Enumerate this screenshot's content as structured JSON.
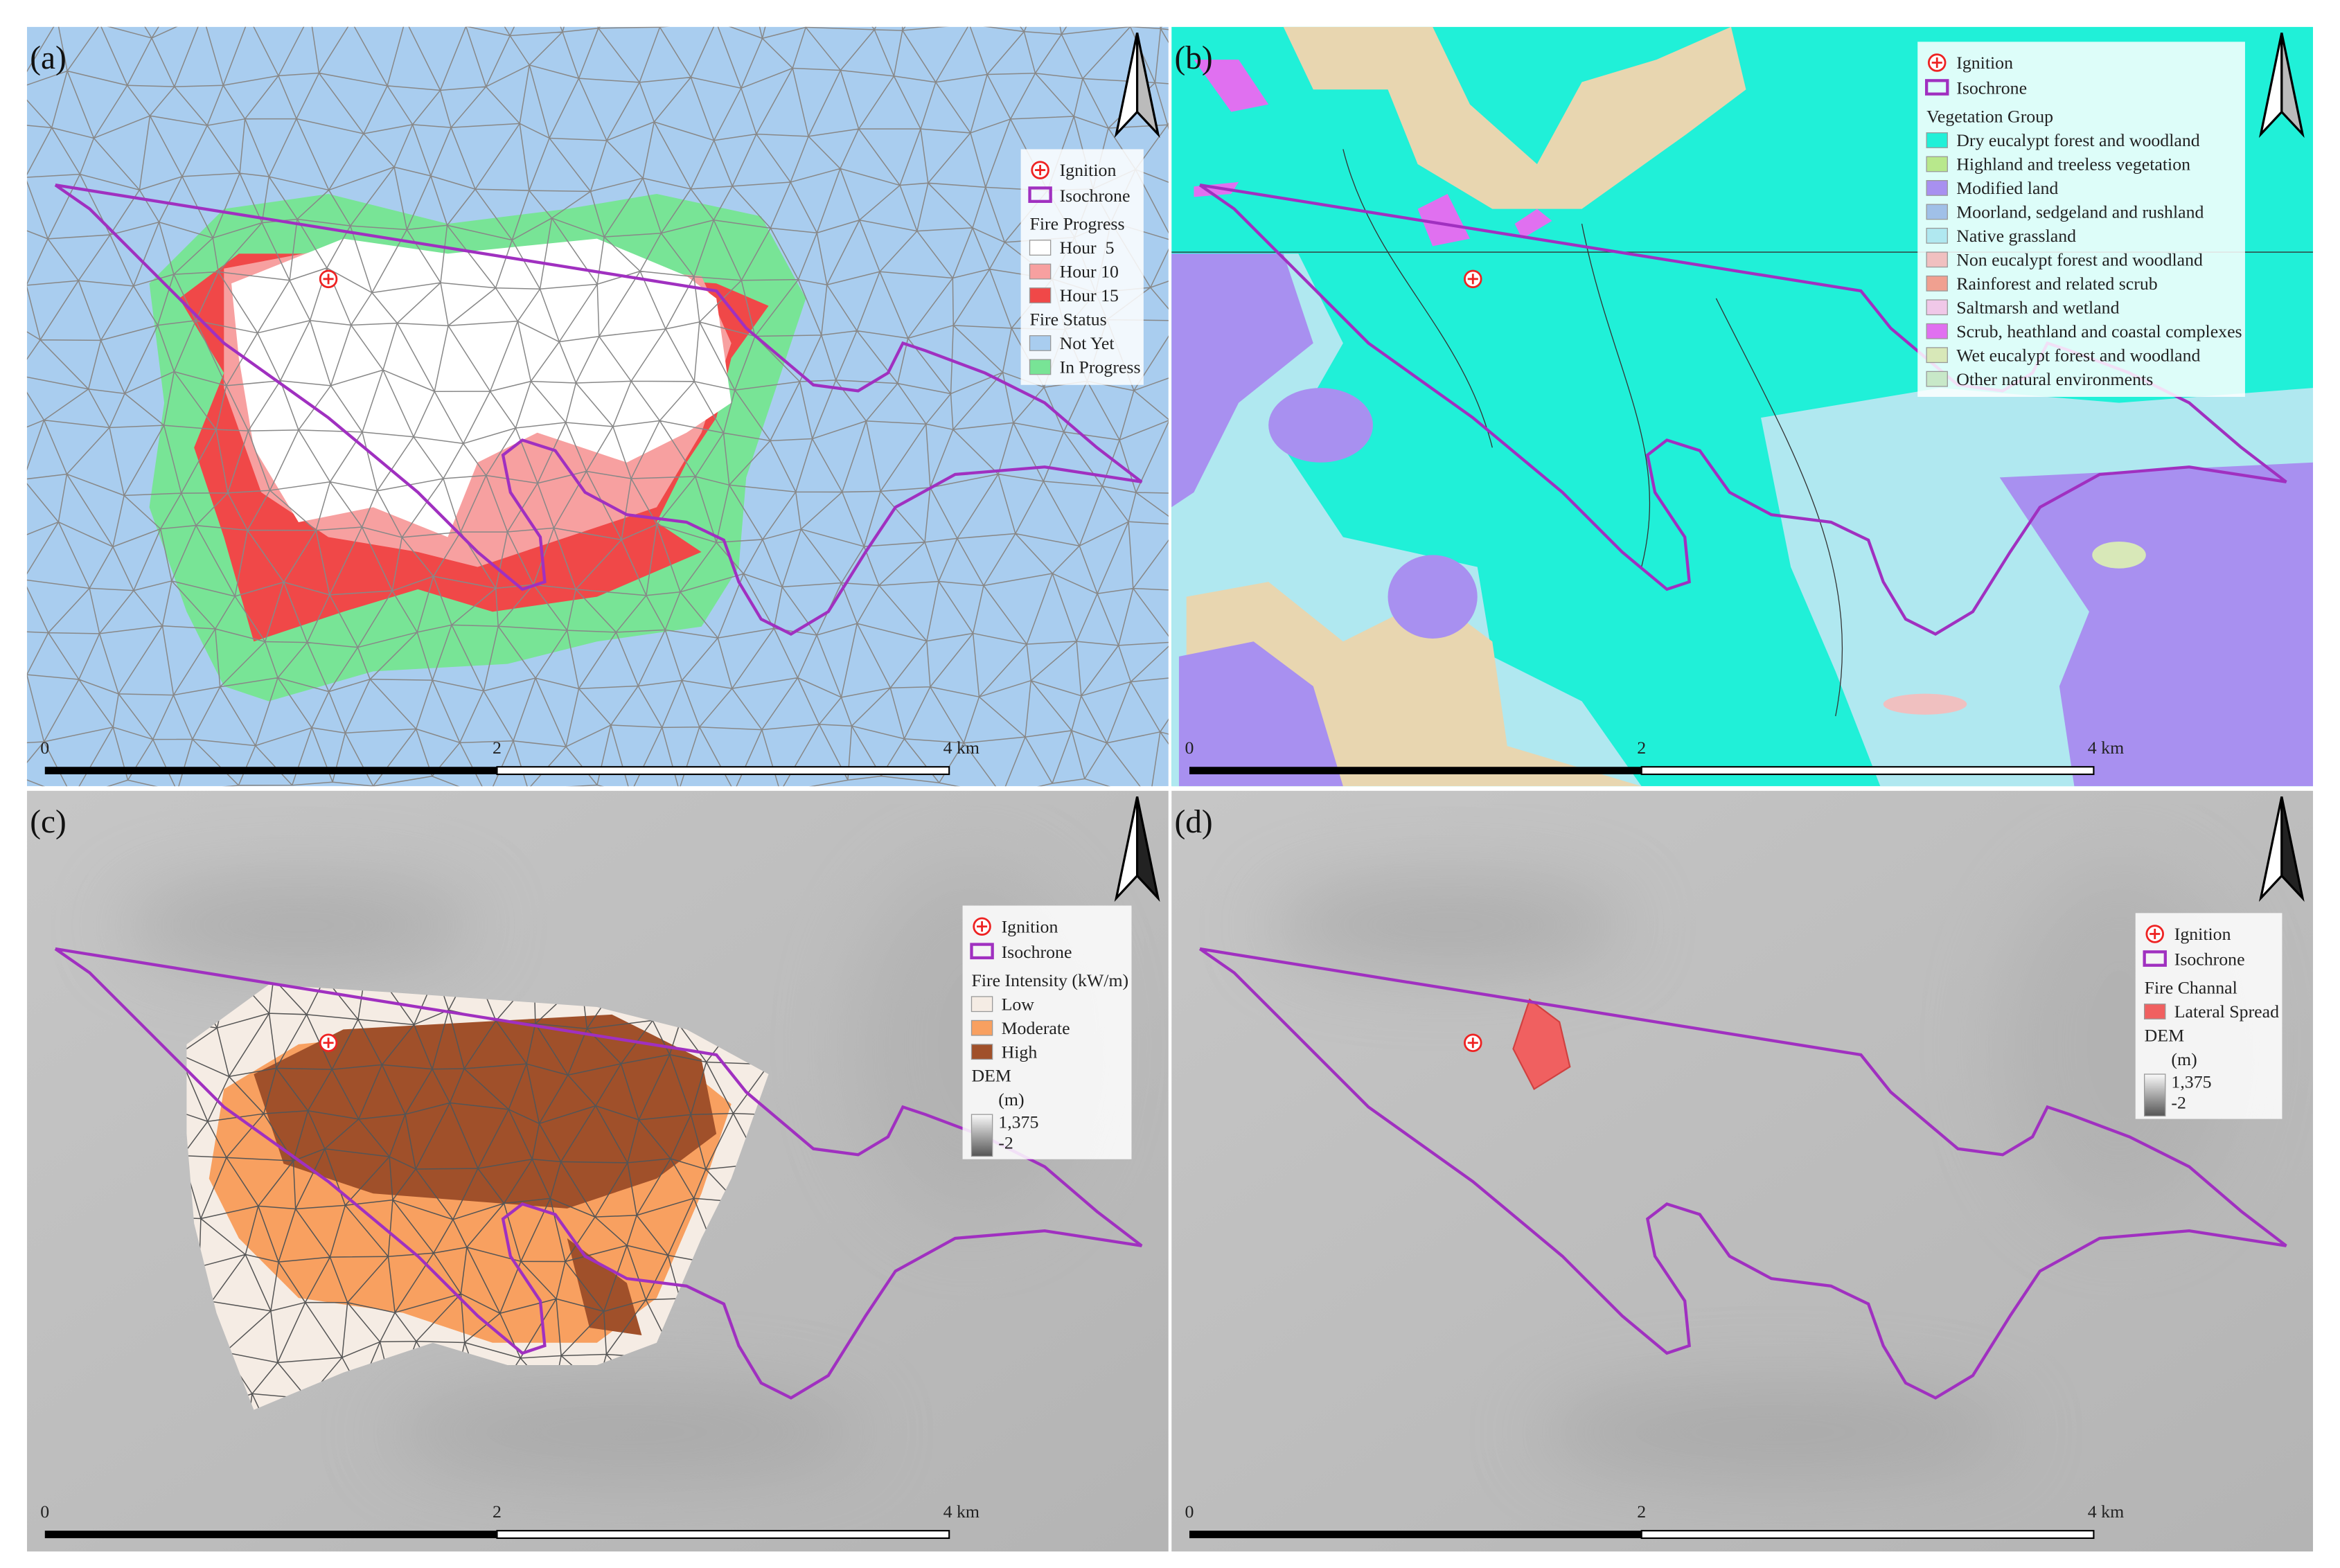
{
  "panels": [
    {
      "label": "(a)",
      "scalebar": [
        "0",
        "2",
        "4 km"
      ],
      "legend": {
        "ignition": "Ignition",
        "isochrone": "Isochrone",
        "groups": [
          {
            "title": "Fire Progress",
            "items": [
              {
                "label": "Hour  5",
                "color": "#ffffff"
              },
              {
                "label": "Hour 10",
                "color": "#f7a0a0"
              },
              {
                "label": "Hour 15",
                "color": "#f04848"
              }
            ]
          },
          {
            "title": "Fire Status",
            "items": [
              {
                "label": "Not Yet",
                "color": "#a9cdef"
              },
              {
                "label": "In Progress",
                "color": "#78e496"
              }
            ]
          }
        ]
      }
    },
    {
      "label": "(b)",
      "scalebar": [
        "0",
        "2",
        "4 km"
      ],
      "legend": {
        "ignition": "Ignition",
        "isochrone": "Isochrone",
        "groups": [
          {
            "title": "Vegetation Group",
            "items": [
              {
                "label": "Dry eucalypt forest and woodland",
                "color": "#20f0d8"
              },
              {
                "label": "Highland and treeless vegetation",
                "color": "#b8e88c"
              },
              {
                "label": "Modified land",
                "color": "#a890f0"
              },
              {
                "label": "Moorland, sedgeland and rushland",
                "color": "#a0c0e8"
              },
              {
                "label": "Native grassland",
                "color": "#b0e8f0"
              },
              {
                "label": "Non eucalypt forest and woodland",
                "color": "#f0c0c0"
              },
              {
                "label": "Rainforest and related scrub",
                "color": "#f0a090"
              },
              {
                "label": "Saltmarsh and wetland",
                "color": "#f0c8e8"
              },
              {
                "label": "Scrub, heathland and coastal complexes",
                "color": "#e070f0"
              },
              {
                "label": "Wet eucalypt forest and woodland",
                "color": "#d8e8b8"
              },
              {
                "label": "Other natural environments",
                "color": "#c8e8c8"
              }
            ]
          }
        ]
      }
    },
    {
      "label": "(c)",
      "scalebar": [
        "0",
        "2",
        "4 km"
      ],
      "legend": {
        "ignition": "Ignition",
        "isochrone": "Isochrone",
        "groups": [
          {
            "title": "Fire Intensity (kW/m)",
            "items": [
              {
                "label": "Low",
                "color": "#f5ece4"
              },
              {
                "label": "Moderate",
                "color": "#f8a060"
              },
              {
                "label": "High",
                "color": "#a0502a"
              }
            ]
          },
          {
            "title": "DEM",
            "unit": "(m)",
            "ramp": [
              "1,375",
              "-2"
            ]
          }
        ]
      }
    },
    {
      "label": "(d)",
      "scalebar": [
        "0",
        "2",
        "4 km"
      ],
      "legend": {
        "ignition": "Ignition",
        "isochrone": "Isochrone",
        "groups": [
          {
            "title": "Fire Channal",
            "items": [
              {
                "label": "Lateral Spread",
                "color": "#f06060"
              }
            ]
          },
          {
            "title": "DEM",
            "unit": "(m)",
            "ramp": [
              "1,375",
              "-2"
            ]
          }
        ]
      }
    }
  ]
}
